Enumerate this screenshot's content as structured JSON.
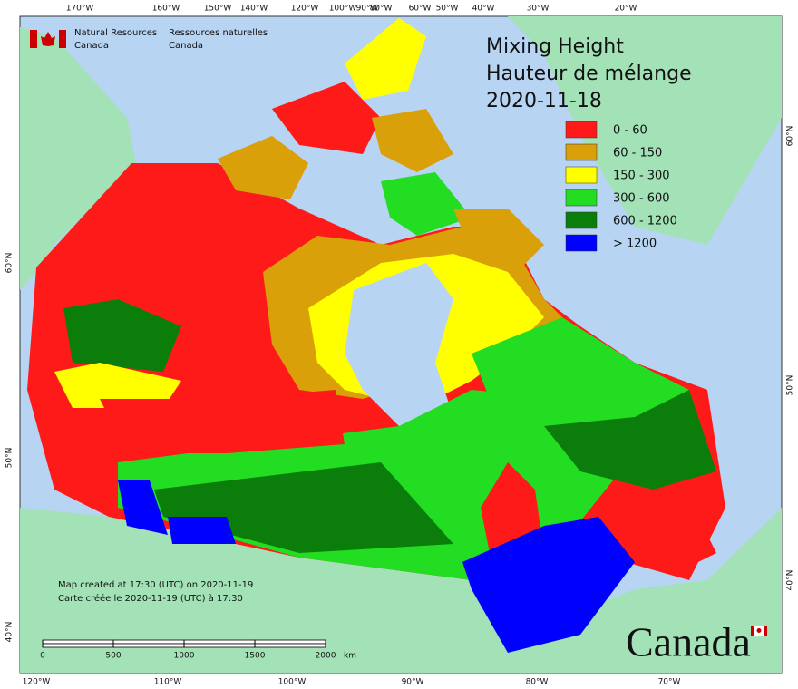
{
  "map": {
    "agency": {
      "en_1": "Natural Resources",
      "en_2": "Canada",
      "fr_1": "Ressources naturelles",
      "fr_2": "Canada"
    },
    "title": {
      "line1": "Mixing Height",
      "line2": "Hauteur de mélange",
      "date": "2020-11-18"
    },
    "legend": {
      "items": [
        {
          "label": "0 - 60",
          "color": "#ff1a1a"
        },
        {
          "label": "60 - 150",
          "color": "#d9a00a"
        },
        {
          "label": "150 - 300",
          "color": "#ffff00"
        },
        {
          "label": "300 - 600",
          "color": "#22dd22"
        },
        {
          "label": "600 - 1200",
          "color": "#0a7d0a"
        },
        {
          "label": "> 1200",
          "color": "#0000ff"
        }
      ]
    },
    "graticule": {
      "top": [
        "170°W",
        "160°W",
        "150°W",
        "140°W",
        "120°W",
        "100°W",
        "90°W",
        "80°W",
        "60°W",
        "50°W",
        "40°W",
        "30°W",
        "20°W"
      ],
      "bottom": [
        "120°W",
        "110°W",
        "100°W",
        "90°W",
        "80°W",
        "70°W"
      ],
      "left": [
        "60°N",
        "50°N",
        "40°N"
      ],
      "right": [
        "60°N",
        "50°N",
        "40°N"
      ]
    },
    "footnote": {
      "en": "Map created at 17:30 (UTC) on 2020-11-19",
      "fr": "Carte créée le 2020-11-19 (UTC) à 17:30"
    },
    "scale_bar": {
      "ticks": [
        0,
        500,
        1000,
        1500,
        2000
      ],
      "unit": "km"
    },
    "wordmark": "Canada"
  }
}
